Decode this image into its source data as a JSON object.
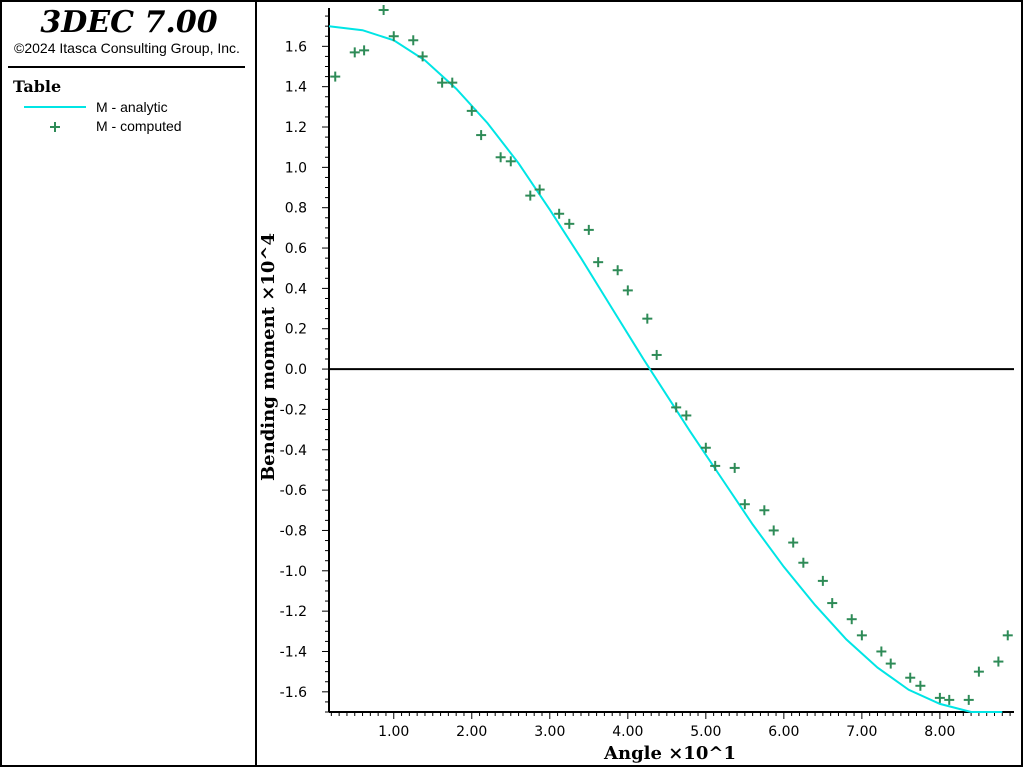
{
  "app": {
    "title": "3DEC 7.00",
    "copyright": "©2024 Itasca Consulting Group, Inc."
  },
  "legend": {
    "title": "Table",
    "items": [
      {
        "label": "M - analytic",
        "kind": "line",
        "color": "#00e5e5"
      },
      {
        "label": "M - computed",
        "kind": "plus",
        "color": "#2e8b57"
      }
    ]
  },
  "chart_data": {
    "type": "line",
    "xlabel": "Angle ×10^1",
    "ylabel": "Bending moment ×10^4",
    "xlim": [
      0.17,
      8.95
    ],
    "ylim": [
      -1.7,
      1.79
    ],
    "x_ticks": [
      1.0,
      2.0,
      3.0,
      4.0,
      5.0,
      6.0,
      7.0,
      8.0
    ],
    "x_tick_labels": [
      "1.00",
      "2.00",
      "3.00",
      "4.00",
      "5.00",
      "6.00",
      "7.00",
      "8.00"
    ],
    "y_ticks": [
      1.6,
      1.4,
      1.2,
      1.0,
      0.8,
      0.6,
      0.4,
      0.2,
      0.0,
      -0.2,
      -0.4,
      -0.6,
      -0.8,
      -1.0,
      -1.2,
      -1.4,
      -1.6
    ],
    "y_tick_labels": [
      "1.6",
      "1.4",
      "1.2",
      "1.0",
      "0.8",
      "0.6",
      "0.4",
      "0.2",
      "0.0",
      "-0.2",
      "-0.4",
      "-0.6",
      "-0.8",
      "-1.0",
      "-1.2",
      "-1.4",
      "-1.6"
    ],
    "grid": false,
    "zero_line": true,
    "series": [
      {
        "name": "M - analytic",
        "style": "line",
        "color": "#00e5e5",
        "x": [
          0.17,
          0.6,
          1.0,
          1.4,
          1.8,
          2.2,
          2.6,
          3.0,
          3.4,
          3.8,
          4.2,
          4.5,
          4.8,
          5.2,
          5.6,
          6.0,
          6.4,
          6.8,
          7.2,
          7.6,
          8.0,
          8.4,
          8.8
        ],
        "y": [
          1.7,
          1.68,
          1.63,
          1.53,
          1.39,
          1.22,
          1.02,
          0.79,
          0.55,
          0.3,
          0.05,
          -0.13,
          -0.31,
          -0.54,
          -0.77,
          -0.98,
          -1.17,
          -1.34,
          -1.48,
          -1.59,
          -1.66,
          -1.7,
          -1.7
        ]
      },
      {
        "name": "M - computed",
        "style": "plus",
        "color": "#2e8b57",
        "x": [
          0.25,
          0.5,
          0.62,
          0.87,
          1.0,
          1.25,
          1.37,
          1.62,
          1.75,
          2.0,
          2.12,
          2.37,
          2.5,
          2.75,
          2.87,
          3.12,
          3.25,
          3.5,
          3.62,
          3.87,
          4.0,
          4.25,
          4.37,
          4.62,
          4.75,
          5.0,
          5.12,
          5.37,
          5.5,
          5.75,
          5.87,
          6.12,
          6.25,
          6.5,
          6.62,
          6.87,
          7.0,
          7.25,
          7.37,
          7.62,
          7.75,
          8.0,
          8.12,
          8.37,
          8.5,
          8.75,
          8.87
        ],
        "y": [
          1.45,
          1.57,
          1.58,
          1.78,
          1.65,
          1.63,
          1.55,
          1.42,
          1.42,
          1.28,
          1.16,
          1.05,
          1.03,
          0.86,
          0.89,
          0.77,
          0.72,
          0.69,
          0.53,
          0.49,
          0.39,
          0.25,
          0.07,
          -0.19,
          -0.23,
          -0.39,
          -0.48,
          -0.49,
          -0.67,
          -0.7,
          -0.8,
          -0.86,
          -0.96,
          -1.05,
          -1.16,
          -1.24,
          -1.32,
          -1.4,
          -1.46,
          -1.53,
          -1.57,
          -1.63,
          -1.64,
          -1.64,
          -1.5,
          -1.45,
          -1.32
        ]
      }
    ]
  }
}
